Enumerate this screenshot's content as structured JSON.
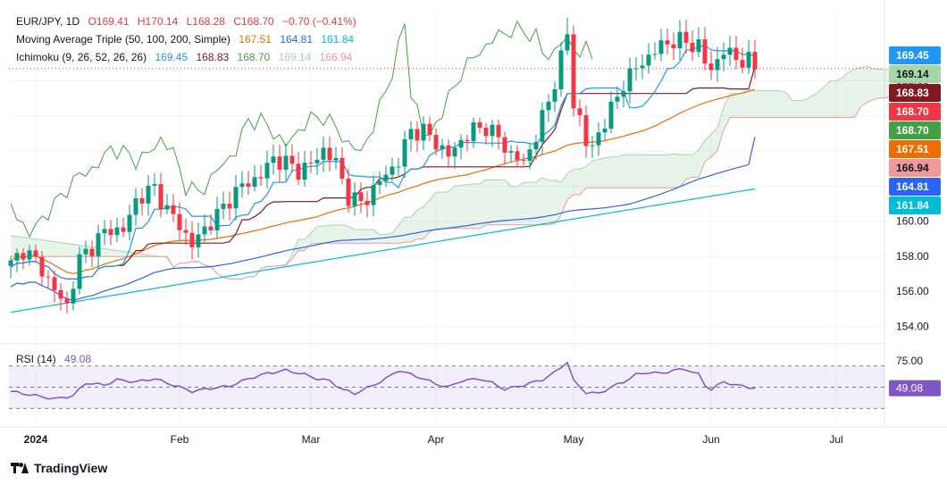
{
  "legend": {
    "symbol": "EUR/JPY, 1D",
    "open": "O169.41",
    "high": "H170.14",
    "low": "L168.28",
    "close": "C168.70",
    "change": "−0.70 (−0.41%)",
    "ma_label": "Moving Average Triple (50, 100, 200, Simple)",
    "ma50": "167.51",
    "ma100": "164.81",
    "ma200": "161.84",
    "ichimoku_label": "Ichimoku (9, 26, 52, 26, 26)",
    "ich_conversion": "169.45",
    "ich_base": "168.83",
    "ich_lagging": "168.70",
    "ich_spanA": "169.14",
    "ich_spanB": "166.94",
    "rsi_label": "RSI (14)",
    "rsi_value": "49.08"
  },
  "colors": {
    "up": "#089981",
    "down": "#f23645",
    "ma50": "#ef6c00",
    "ma100": "#2962ff",
    "ma200": "#00bcd4",
    "conversion": "#2196f3",
    "base": "#801922",
    "lagging": "#43a047",
    "spanA": "#a5d6a7",
    "spanB": "#ef9a9a",
    "rsi": "#7e57c2"
  },
  "brand": "TradingView",
  "chart_data": {
    "type": "candlestick",
    "ylim": [
      153,
      172
    ],
    "yticks": [
      154,
      156,
      158,
      160,
      162,
      164,
      166,
      168
    ],
    "xticks": [
      {
        "label": "2024",
        "bar": 4
      },
      {
        "label": "Feb",
        "bar": 27
      },
      {
        "label": "Mar",
        "bar": 48
      },
      {
        "label": "Apr",
        "bar": 68
      },
      {
        "label": "May",
        "bar": 90
      },
      {
        "label": "Jun",
        "bar": 112
      },
      {
        "label": "Jul",
        "bar": 132
      }
    ],
    "axis_badges": [
      {
        "value": 169.45,
        "label": "169.45",
        "color": "#2196f3"
      },
      {
        "value": 169.14,
        "label": "169.14",
        "color": "#a5d6a7"
      },
      {
        "value": 168.83,
        "label": "168.83",
        "color": "#801922"
      },
      {
        "value": 168.7,
        "label": "168.70",
        "color": "#f23645"
      },
      {
        "value": 168.7,
        "label": "168.70",
        "color": "#43a047"
      },
      {
        "value": 167.51,
        "label": "167.51",
        "color": "#ef6c00"
      },
      {
        "value": 166.94,
        "label": "166.94",
        "color": "#ef9a9a"
      },
      {
        "value": 164.81,
        "label": "164.81",
        "color": "#2962ff"
      },
      {
        "value": 161.84,
        "label": "161.84",
        "color": "#00bcd4"
      }
    ],
    "close_anchors": [
      [
        0,
        157.5
      ],
      [
        2,
        158.4
      ],
      [
        5,
        157.3
      ],
      [
        7,
        156.0
      ],
      [
        9,
        155.2
      ],
      [
        11,
        157.8
      ],
      [
        14,
        159.0
      ],
      [
        16,
        159.6
      ],
      [
        18,
        159.4
      ],
      [
        20,
        161.2
      ],
      [
        23,
        161.9
      ],
      [
        25,
        160.6
      ],
      [
        27,
        159.8
      ],
      [
        29,
        158.6
      ],
      [
        31,
        159.6
      ],
      [
        33,
        160.3
      ],
      [
        35,
        161.3
      ],
      [
        37,
        162.0
      ],
      [
        40,
        162.6
      ],
      [
        42,
        163.6
      ],
      [
        44,
        163.3
      ],
      [
        46,
        162.9
      ],
      [
        48,
        163.2
      ],
      [
        50,
        164.1
      ],
      [
        52,
        163.3
      ],
      [
        54,
        161.4
      ],
      [
        56,
        161.0
      ],
      [
        58,
        161.8
      ],
      [
        60,
        162.7
      ],
      [
        62,
        163.4
      ],
      [
        64,
        165.2
      ],
      [
        66,
        165.1
      ],
      [
        68,
        164.5
      ],
      [
        70,
        163.7
      ],
      [
        72,
        164.6
      ],
      [
        74,
        165.2
      ],
      [
        76,
        165.4
      ],
      [
        78,
        164.7
      ],
      [
        80,
        163.8
      ],
      [
        82,
        163.3
      ],
      [
        84,
        164.9
      ],
      [
        86,
        166.8
      ],
      [
        88,
        169.3
      ],
      [
        89,
        170.6
      ],
      [
        90,
        166.7
      ],
      [
        91,
        165.9
      ],
      [
        92,
        164.4
      ],
      [
        93,
        164.1
      ],
      [
        94,
        165.1
      ],
      [
        96,
        166.3
      ],
      [
        98,
        167.9
      ],
      [
        100,
        168.7
      ],
      [
        102,
        169.4
      ],
      [
        104,
        170.0
      ],
      [
        106,
        170.3
      ],
      [
        108,
        170.2
      ],
      [
        110,
        170.0
      ],
      [
        111,
        169.0
      ],
      [
        112,
        168.7
      ],
      [
        114,
        169.7
      ],
      [
        116,
        169.3
      ],
      [
        118,
        169.1
      ],
      [
        119,
        168.7
      ]
    ],
    "rsi": {
      "ylim": [
        15,
        85
      ],
      "levels": [
        30,
        50,
        70
      ],
      "tick_labels": [
        "75.00"
      ],
      "anchors": [
        [
          0,
          46
        ],
        [
          4,
          42
        ],
        [
          7,
          39
        ],
        [
          10,
          42
        ],
        [
          12,
          54
        ],
        [
          15,
          52
        ],
        [
          17,
          57
        ],
        [
          20,
          55
        ],
        [
          23,
          58
        ],
        [
          26,
          52
        ],
        [
          29,
          46
        ],
        [
          32,
          49
        ],
        [
          35,
          51
        ],
        [
          38,
          58
        ],
        [
          41,
          63
        ],
        [
          44,
          66
        ],
        [
          47,
          62
        ],
        [
          49,
          58
        ],
        [
          51,
          56
        ],
        [
          53,
          48
        ],
        [
          55,
          44
        ],
        [
          58,
          52
        ],
        [
          60,
          58
        ],
        [
          62,
          66
        ],
        [
          64,
          62
        ],
        [
          66,
          58
        ],
        [
          68,
          53
        ],
        [
          70,
          50
        ],
        [
          72,
          56
        ],
        [
          75,
          58
        ],
        [
          77,
          54
        ],
        [
          79,
          48
        ],
        [
          82,
          52
        ],
        [
          85,
          57
        ],
        [
          87,
          64
        ],
        [
          89,
          74
        ],
        [
          90,
          56
        ],
        [
          92,
          45
        ],
        [
          94,
          44
        ],
        [
          96,
          50
        ],
        [
          98,
          55
        ],
        [
          100,
          62
        ],
        [
          102,
          64
        ],
        [
          104,
          63
        ],
        [
          106,
          66
        ],
        [
          108,
          67
        ],
        [
          110,
          62
        ],
        [
          111,
          52
        ],
        [
          112,
          48
        ],
        [
          114,
          55
        ],
        [
          116,
          52
        ],
        [
          118,
          50
        ],
        [
          119,
          49
        ]
      ]
    },
    "series_final": {
      "ma50": 167.51,
      "ma100": 164.81,
      "ma200": 161.84,
      "conversion": 169.45,
      "base": 168.83,
      "spanA": 169.14,
      "spanB": 166.94
    }
  }
}
